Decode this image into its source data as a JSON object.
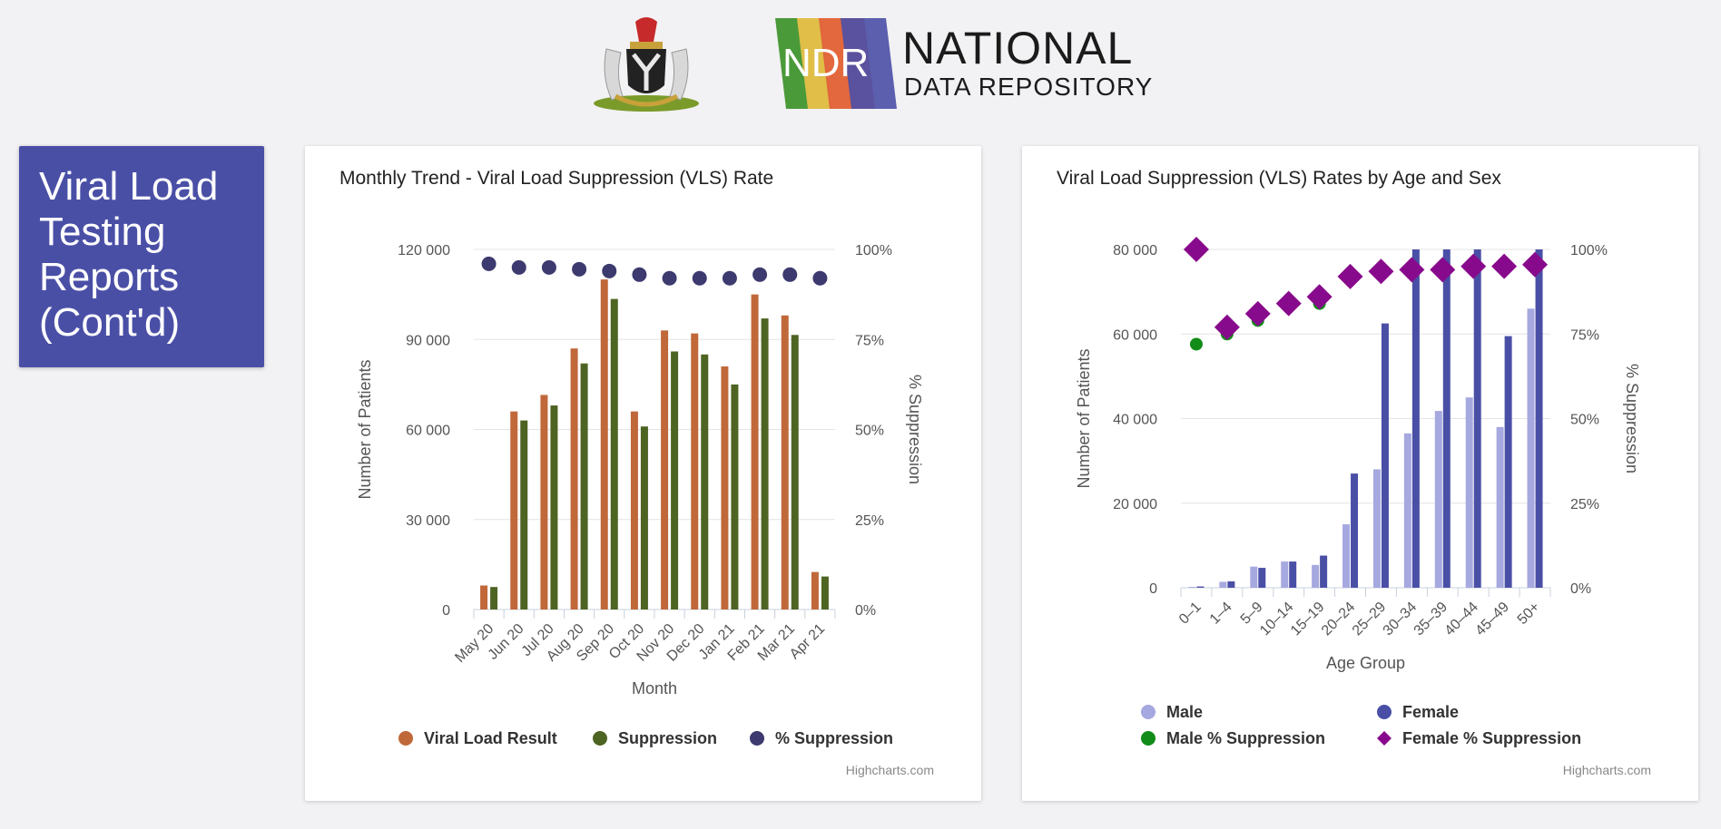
{
  "header": {
    "crest_icon": "coat-of-arms-icon",
    "logo_icon": "ndr-logo-icon",
    "logo_text": "NDR",
    "brand_title": "NATIONAL",
    "brand_subtitle": "DATA REPOSITORY"
  },
  "title_box": {
    "text": "Viral Load Testing Reports (Cont'd)"
  },
  "chart_data": [
    {
      "type": "bar",
      "title": "Monthly Trend - Viral Load Suppression (VLS) Rate",
      "xlabel": "Month",
      "ylabel": "Number of Patients",
      "y2label": "% Suppression",
      "categories": [
        "May 20",
        "Jun 20",
        "Jul 20",
        "Aug 20",
        "Sep 20",
        "Oct 20",
        "Nov 20",
        "Dec 20",
        "Jan 21",
        "Feb 21",
        "Mar 21",
        "Apr 21"
      ],
      "ylim": [
        0,
        120000
      ],
      "yticks": [
        "0",
        "30 000",
        "60 000",
        "90 000",
        "120 000"
      ],
      "y2lim": [
        0,
        100
      ],
      "y2ticks": [
        "0%",
        "25%",
        "50%",
        "75%",
        "100%"
      ],
      "grid": true,
      "legend_placement": "bottom",
      "series": [
        {
          "name": "Viral Load Result",
          "type": "bar",
          "color": "#c0683a",
          "values": [
            8000,
            66000,
            71500,
            87000,
            110000,
            66000,
            93000,
            92000,
            81000,
            105000,
            98000,
            12500
          ]
        },
        {
          "name": "Suppression",
          "type": "bar",
          "color": "#4e6423",
          "values": [
            7500,
            63000,
            68000,
            82000,
            103500,
            61000,
            86000,
            85000,
            75000,
            97000,
            91500,
            11000
          ]
        },
        {
          "name": "% Suppression",
          "type": "scatter",
          "axis": "secondary",
          "color": "#3c3a6e",
          "values": [
            96,
            95,
            95,
            94.5,
            94,
            93,
            92,
            92,
            92,
            93,
            93,
            92
          ]
        }
      ],
      "credits": "Highcharts.com"
    },
    {
      "type": "bar",
      "title": "Viral Load Suppression (VLS) Rates by Age and Sex",
      "xlabel": "Age Group",
      "ylabel": "Number of Patients",
      "y2label": "% Suppression",
      "categories": [
        "0–1",
        "1–4",
        "5–9",
        "10–14",
        "15–19",
        "20–24",
        "25–29",
        "30–34",
        "35–39",
        "40–44",
        "45–49",
        "50+"
      ],
      "ylim": [
        0,
        80000
      ],
      "yticks": [
        "0",
        "20 000",
        "40 000",
        "60 000",
        "80 000"
      ],
      "y2lim": [
        0,
        100
      ],
      "y2ticks": [
        "0%",
        "25%",
        "50%",
        "75%",
        "100%"
      ],
      "grid": true,
      "legend_placement": "bottom",
      "series": [
        {
          "name": "Male",
          "type": "bar",
          "color": "#a6a8e0",
          "values": [
            200,
            1400,
            5000,
            6200,
            5400,
            15000,
            28000,
            36500,
            41800,
            45000,
            38000,
            66000
          ]
        },
        {
          "name": "Female",
          "type": "bar",
          "color": "#4a4fa6",
          "values": [
            300,
            1500,
            4700,
            6200,
            7600,
            27000,
            62500,
            80000,
            80000,
            80000,
            59500,
            80000
          ]
        },
        {
          "name": "Male % Suppression",
          "type": "scatter",
          "axis": "secondary",
          "color": "#118c18",
          "values": [
            72,
            75,
            79,
            83,
            84,
            91,
            93,
            94,
            94,
            95,
            95,
            95
          ]
        },
        {
          "name": "Female % Suppression",
          "type": "scatter",
          "axis": "secondary",
          "color": "#880a8c",
          "values": [
            100,
            77,
            81,
            84,
            86,
            92,
            93.5,
            94,
            94,
            95,
            95,
            95.5
          ]
        }
      ],
      "credits": "Highcharts.com"
    }
  ]
}
